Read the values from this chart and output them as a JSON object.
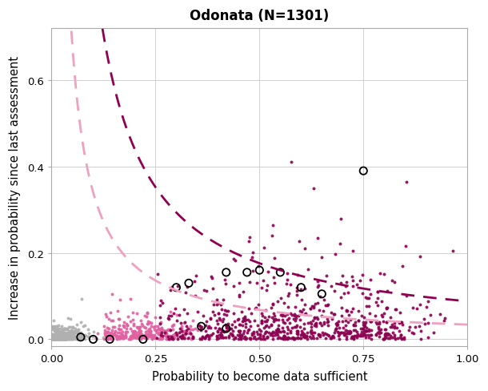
{
  "title": "Odonata (N=1301)",
  "xlabel": "Probability to become data sufficient",
  "ylabel": "Increase in probability since last assessment",
  "xlim": [
    0.0,
    1.0
  ],
  "ylim": [
    -0.015,
    0.72
  ],
  "yticks": [
    0.0,
    0.2,
    0.4,
    0.6
  ],
  "xticks": [
    0.0,
    0.25,
    0.5,
    0.75,
    1.0
  ],
  "background_color": "#ffffff",
  "grid_color": "#d0d0d0",
  "curve1_color": "#f0a0c0",
  "curve2_color": "#900050",
  "point_colors": {
    "gray": "#b0b0b0",
    "pink": "#e060a0",
    "dark": "#8b0050"
  },
  "open_circle_color": "#000000",
  "seed": 99,
  "n_gray": 480,
  "n_pink": 280,
  "n_dark": 540
}
